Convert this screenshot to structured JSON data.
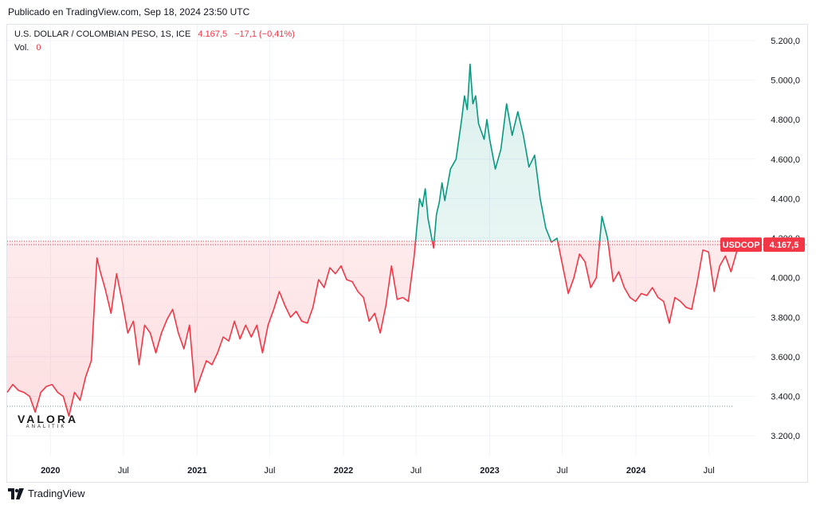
{
  "header": {
    "published": "Publicado en TradingView.com, Sep 18, 2024 23:50 UTC"
  },
  "legend": {
    "title": "U.S. DOLLAR / COLOMBIAN PESO, 1S, ICE",
    "last": "4.167,5",
    "change": "−17,1 (−0,41%)",
    "vol_label": "Vol.",
    "vol_value": "0"
  },
  "price_label": {
    "symbol": "USDCOP",
    "value": "4.167,5"
  },
  "watermark": {
    "brand": "VALORA",
    "sub": "ANALITIK"
  },
  "footer": {
    "brand": "TradingView"
  },
  "colors": {
    "up": "#089981",
    "down": "#f23645",
    "grid": "#f0f3fa",
    "axis_text": "#131722"
  },
  "chart_data": {
    "type": "area",
    "baseline": 4184.6,
    "reference_low": 3350,
    "ylim": [
      3100,
      5280
    ],
    "xlim": [
      "2019-09-15",
      "2024-10-25"
    ],
    "y_ticks": [
      {
        "v": 3200,
        "label": "3.200,0"
      },
      {
        "v": 3400,
        "label": "3.400,0"
      },
      {
        "v": 3600,
        "label": "3.600,0"
      },
      {
        "v": 3800,
        "label": "3.800,0"
      },
      {
        "v": 4000,
        "label": "4.000,0"
      },
      {
        "v": 4200,
        "label": "4.200,0"
      },
      {
        "v": 4400,
        "label": "4.400,0"
      },
      {
        "v": 4600,
        "label": "4.600,0"
      },
      {
        "v": 4800,
        "label": "4.800,0"
      },
      {
        "v": 5000,
        "label": "5.000,0"
      },
      {
        "v": 5200,
        "label": "5.200,0"
      }
    ],
    "x_ticks": [
      {
        "date": "2020-01-01",
        "label": "2020",
        "bold": true
      },
      {
        "date": "2020-07-01",
        "label": "Jul",
        "bold": false
      },
      {
        "date": "2021-01-01",
        "label": "2021",
        "bold": true
      },
      {
        "date": "2021-07-01",
        "label": "Jul",
        "bold": false
      },
      {
        "date": "2022-01-01",
        "label": "2022",
        "bold": true
      },
      {
        "date": "2022-07-01",
        "label": "Jul",
        "bold": false
      },
      {
        "date": "2023-01-01",
        "label": "2023",
        "bold": true
      },
      {
        "date": "2023-07-01",
        "label": "Jul",
        "bold": false
      },
      {
        "date": "2024-01-01",
        "label": "2024",
        "bold": true
      },
      {
        "date": "2024-07-01",
        "label": "Jul",
        "bold": false
      }
    ],
    "series": [
      {
        "values": [
          [
            "2019-09-15",
            3420
          ],
          [
            "2019-09-29",
            3460
          ],
          [
            "2019-10-13",
            3430
          ],
          [
            "2019-10-27",
            3420
          ],
          [
            "2019-11-10",
            3400
          ],
          [
            "2019-11-24",
            3320
          ],
          [
            "2019-12-08",
            3420
          ],
          [
            "2019-12-22",
            3450
          ],
          [
            "2020-01-05",
            3460
          ],
          [
            "2020-01-19",
            3420
          ],
          [
            "2020-02-02",
            3400
          ],
          [
            "2020-02-16",
            3300
          ],
          [
            "2020-03-01",
            3420
          ],
          [
            "2020-03-15",
            3380
          ],
          [
            "2020-03-29",
            3500
          ],
          [
            "2020-04-12",
            3580
          ],
          [
            "2020-04-26",
            4100
          ],
          [
            "2020-05-03",
            4040
          ],
          [
            "2020-05-17",
            3940
          ],
          [
            "2020-05-31",
            3820
          ],
          [
            "2020-06-14",
            4020
          ],
          [
            "2020-06-28",
            3880
          ],
          [
            "2020-07-12",
            3720
          ],
          [
            "2020-07-26",
            3780
          ],
          [
            "2020-08-09",
            3560
          ],
          [
            "2020-08-23",
            3760
          ],
          [
            "2020-09-06",
            3720
          ],
          [
            "2020-09-20",
            3620
          ],
          [
            "2020-10-04",
            3720
          ],
          [
            "2020-10-18",
            3790
          ],
          [
            "2020-11-01",
            3840
          ],
          [
            "2020-11-15",
            3720
          ],
          [
            "2020-11-29",
            3640
          ],
          [
            "2020-12-13",
            3760
          ],
          [
            "2020-12-27",
            3420
          ],
          [
            "2021-01-10",
            3500
          ],
          [
            "2021-01-24",
            3580
          ],
          [
            "2021-02-07",
            3560
          ],
          [
            "2021-02-21",
            3620
          ],
          [
            "2021-03-07",
            3700
          ],
          [
            "2021-03-21",
            3680
          ],
          [
            "2021-04-04",
            3780
          ],
          [
            "2021-04-18",
            3690
          ],
          [
            "2021-05-02",
            3760
          ],
          [
            "2021-05-16",
            3700
          ],
          [
            "2021-05-30",
            3760
          ],
          [
            "2021-06-13",
            3620
          ],
          [
            "2021-06-27",
            3760
          ],
          [
            "2021-07-11",
            3840
          ],
          [
            "2021-07-25",
            3930
          ],
          [
            "2021-08-08",
            3860
          ],
          [
            "2021-08-22",
            3800
          ],
          [
            "2021-09-05",
            3830
          ],
          [
            "2021-09-19",
            3780
          ],
          [
            "2021-10-03",
            3770
          ],
          [
            "2021-10-17",
            3850
          ],
          [
            "2021-10-31",
            3990
          ],
          [
            "2021-11-14",
            3950
          ],
          [
            "2021-11-28",
            4050
          ],
          [
            "2021-12-12",
            4020
          ],
          [
            "2021-12-26",
            4060
          ],
          [
            "2022-01-09",
            3990
          ],
          [
            "2022-01-23",
            3980
          ],
          [
            "2022-02-06",
            3930
          ],
          [
            "2022-02-20",
            3900
          ],
          [
            "2022-03-06",
            3780
          ],
          [
            "2022-03-20",
            3820
          ],
          [
            "2022-04-03",
            3720
          ],
          [
            "2022-04-17",
            3860
          ],
          [
            "2022-05-01",
            4060
          ],
          [
            "2022-05-15",
            3890
          ],
          [
            "2022-05-29",
            3900
          ],
          [
            "2022-06-12",
            3880
          ],
          [
            "2022-06-26",
            4100
          ],
          [
            "2022-07-03",
            4250
          ],
          [
            "2022-07-10",
            4400
          ],
          [
            "2022-07-17",
            4360
          ],
          [
            "2022-07-24",
            4450
          ],
          [
            "2022-07-31",
            4300
          ],
          [
            "2022-08-14",
            4150
          ],
          [
            "2022-08-21",
            4320
          ],
          [
            "2022-08-28",
            4380
          ],
          [
            "2022-09-04",
            4480
          ],
          [
            "2022-09-11",
            4390
          ],
          [
            "2022-09-25",
            4550
          ],
          [
            "2022-10-09",
            4600
          ],
          [
            "2022-10-23",
            4800
          ],
          [
            "2022-10-30",
            4920
          ],
          [
            "2022-11-06",
            4850
          ],
          [
            "2022-11-13",
            5080
          ],
          [
            "2022-11-20",
            4880
          ],
          [
            "2022-11-27",
            4920
          ],
          [
            "2022-12-04",
            4780
          ],
          [
            "2022-12-18",
            4700
          ],
          [
            "2022-12-25",
            4800
          ],
          [
            "2023-01-01",
            4700
          ],
          [
            "2023-01-15",
            4550
          ],
          [
            "2023-01-29",
            4650
          ],
          [
            "2023-02-12",
            4880
          ],
          [
            "2023-02-26",
            4720
          ],
          [
            "2023-03-12",
            4840
          ],
          [
            "2023-03-26",
            4720
          ],
          [
            "2023-04-09",
            4560
          ],
          [
            "2023-04-23",
            4620
          ],
          [
            "2023-05-07",
            4400
          ],
          [
            "2023-05-21",
            4250
          ],
          [
            "2023-06-04",
            4180
          ],
          [
            "2023-06-18",
            4200
          ],
          [
            "2023-07-02",
            4060
          ],
          [
            "2023-07-16",
            3920
          ],
          [
            "2023-07-30",
            4000
          ],
          [
            "2023-08-13",
            4120
          ],
          [
            "2023-08-27",
            4080
          ],
          [
            "2023-09-10",
            3950
          ],
          [
            "2023-09-24",
            4000
          ],
          [
            "2023-10-08",
            4310
          ],
          [
            "2023-10-22",
            4200
          ],
          [
            "2023-11-05",
            3980
          ],
          [
            "2023-11-19",
            4030
          ],
          [
            "2023-12-03",
            3950
          ],
          [
            "2023-12-17",
            3900
          ],
          [
            "2023-12-31",
            3880
          ],
          [
            "2024-01-14",
            3920
          ],
          [
            "2024-01-28",
            3910
          ],
          [
            "2024-02-11",
            3950
          ],
          [
            "2024-02-25",
            3900
          ],
          [
            "2024-03-10",
            3880
          ],
          [
            "2024-03-24",
            3770
          ],
          [
            "2024-04-07",
            3900
          ],
          [
            "2024-04-21",
            3880
          ],
          [
            "2024-05-05",
            3850
          ],
          [
            "2024-05-19",
            3840
          ],
          [
            "2024-06-02",
            3980
          ],
          [
            "2024-06-16",
            4140
          ],
          [
            "2024-06-30",
            4130
          ],
          [
            "2024-07-14",
            3930
          ],
          [
            "2024-07-28",
            4060
          ],
          [
            "2024-08-11",
            4110
          ],
          [
            "2024-08-25",
            4030
          ],
          [
            "2024-09-08",
            4130
          ],
          [
            "2024-09-15",
            4167.5
          ]
        ]
      }
    ]
  }
}
